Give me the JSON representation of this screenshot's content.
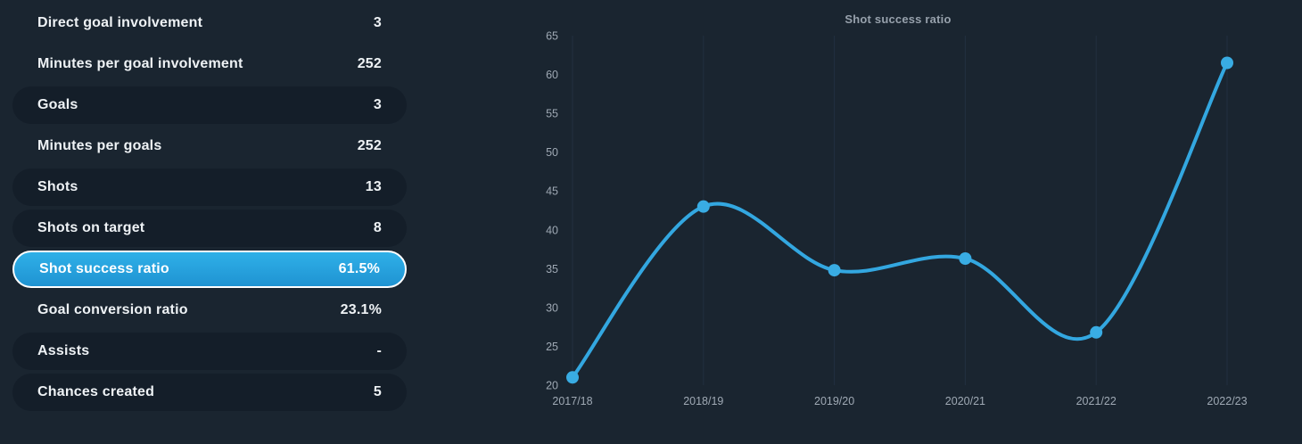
{
  "stats_panel": {
    "rows": [
      {
        "label": "Direct goal involvement",
        "value": "3",
        "style": "plain"
      },
      {
        "label": "Minutes per goal involvement",
        "value": "252",
        "style": "plain"
      },
      {
        "label": "Goals",
        "value": "3",
        "style": "pill"
      },
      {
        "label": "Minutes per goals",
        "value": "252",
        "style": "plain"
      },
      {
        "label": "Shots",
        "value": "13",
        "style": "pill"
      },
      {
        "label": "Shots on target",
        "value": "8",
        "style": "pill"
      },
      {
        "label": "Shot success ratio",
        "value": "61.5%",
        "style": "selected"
      },
      {
        "label": "Goal conversion ratio",
        "value": "23.1%",
        "style": "plain"
      },
      {
        "label": "Assists",
        "value": "-",
        "style": "pill"
      },
      {
        "label": "Chances created",
        "value": "5",
        "style": "pill"
      }
    ]
  },
  "chart_data": {
    "type": "line",
    "title": "Shot success ratio",
    "x": [
      "2017/18",
      "2018/19",
      "2019/20",
      "2020/21",
      "2021/22",
      "2022/23"
    ],
    "values": [
      21,
      43,
      34.8,
      36.3,
      26.8,
      61.5
    ],
    "xlabel": "",
    "ylabel": "",
    "ylim": [
      20,
      65
    ],
    "yticks": [
      20,
      25,
      30,
      35,
      40,
      45,
      50,
      55,
      60,
      65
    ],
    "grid": "vertical",
    "legend": "none",
    "colors": {
      "line": "#33a7e0",
      "marker": "#39ace3",
      "grid": "#223040",
      "tick_text": "#9fa9b4",
      "title_text": "#97a1ac",
      "background": "#1a2530",
      "pill": "#141e29",
      "selected_top": "#2fb0e8",
      "selected_bottom": "#1f93d2"
    }
  }
}
